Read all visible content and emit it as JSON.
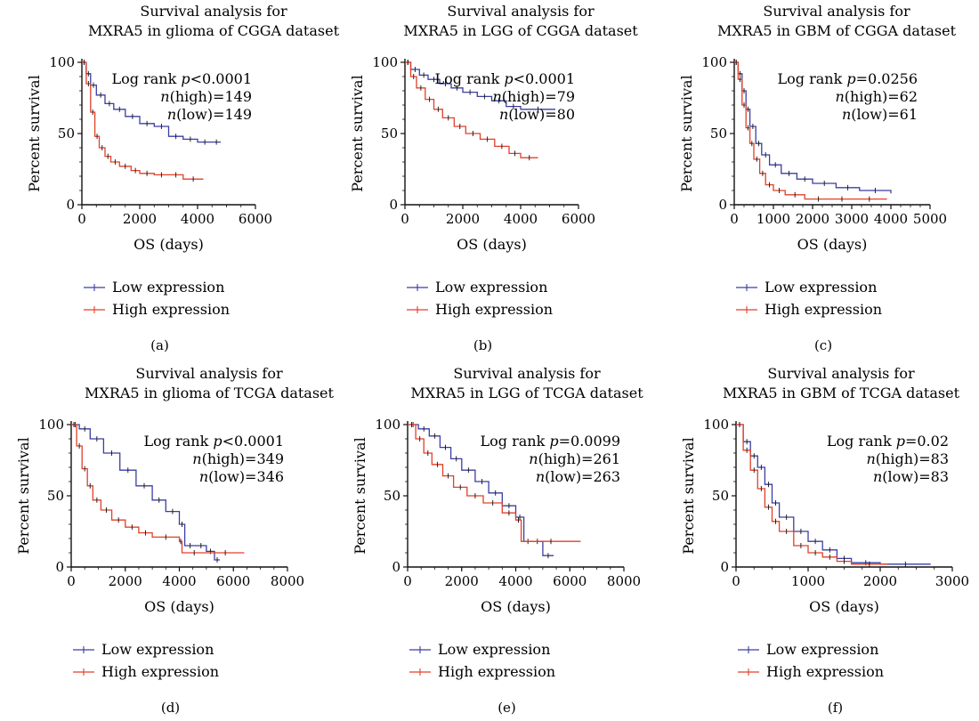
{
  "colors": {
    "low": "#3a3fa0",
    "high": "#e0402a",
    "axis": "#111111"
  },
  "legend": {
    "low": "Low expression",
    "high": "High expression"
  },
  "chart_data": [
    {
      "type": "line",
      "panel": "(a)",
      "title": [
        "Survival analysis for",
        "MXRA5 in glioma of CGGA dataset"
      ],
      "xlabel": "OS (days)",
      "ylabel": "Percent survival",
      "xlim": [
        0,
        6000
      ],
      "ylim": [
        0,
        100
      ],
      "xticks": [
        0,
        2000,
        4000,
        6000
      ],
      "yticks": [
        0,
        50,
        100
      ],
      "annotation": {
        "logrank": "Log rank ",
        "p": "p<0.0001",
        "n_high": "=149",
        "n_low": "=149"
      },
      "series": [
        {
          "name": "Low expression",
          "key": "low",
          "x": [
            0,
            150,
            300,
            500,
            800,
            1100,
            1500,
            2000,
            2500,
            3000,
            3500,
            4000,
            4500,
            4800
          ],
          "y": [
            100,
            92,
            84,
            77,
            71,
            67,
            62,
            57,
            55,
            48,
            46,
            44,
            44,
            44
          ]
        },
        {
          "name": "High expression",
          "key": "high",
          "x": [
            0,
            150,
            300,
            450,
            600,
            800,
            1000,
            1300,
            1700,
            2000,
            2500,
            3000,
            3500,
            4200
          ],
          "y": [
            100,
            85,
            65,
            48,
            40,
            34,
            30,
            27,
            24,
            22,
            21,
            21,
            18,
            18
          ]
        }
      ]
    },
    {
      "type": "line",
      "panel": "(b)",
      "title": [
        "Survival analysis for",
        "MXRA5 in LGG of CGGA dataset"
      ],
      "xlabel": "OS (days)",
      "ylabel": "Percent survival",
      "xlim": [
        0,
        6000
      ],
      "ylim": [
        0,
        100
      ],
      "xticks": [
        0,
        2000,
        4000,
        6000
      ],
      "yticks": [
        0,
        50,
        100
      ],
      "annotation": {
        "logrank": "Log rank ",
        "p": "p<0.0001",
        "n_high": "=79",
        "n_low": "=80"
      },
      "series": [
        {
          "name": "Low expression",
          "key": "low",
          "x": [
            0,
            200,
            500,
            800,
            1200,
            1600,
            2000,
            2500,
            3000,
            3500,
            4000,
            5200
          ],
          "y": [
            100,
            95,
            91,
            88,
            85,
            82,
            79,
            76,
            73,
            69,
            67,
            67
          ]
        },
        {
          "name": "High expression",
          "key": "high",
          "x": [
            0,
            200,
            400,
            700,
            1000,
            1300,
            1700,
            2100,
            2600,
            3100,
            3600,
            4000,
            4600
          ],
          "y": [
            100,
            90,
            82,
            74,
            67,
            61,
            55,
            50,
            46,
            41,
            36,
            33,
            33
          ]
        }
      ]
    },
    {
      "type": "line",
      "panel": "(c)",
      "title": [
        "Survival analysis for",
        "MXRA5 in GBM of CGGA dataset"
      ],
      "xlabel": "OS (days)",
      "ylabel": "Percent survival",
      "xlim": [
        0,
        5000
      ],
      "ylim": [
        0,
        100
      ],
      "xticks": [
        0,
        1000,
        2000,
        3000,
        4000,
        5000
      ],
      "yticks": [
        0,
        50,
        100
      ],
      "annotation": {
        "logrank": "Log rank ",
        "p": "p=0.0256",
        "n_high": "=62",
        "n_low": "=61"
      },
      "series": [
        {
          "name": "Low expression",
          "key": "low",
          "x": [
            0,
            100,
            200,
            300,
            400,
            550,
            700,
            900,
            1200,
            1600,
            2000,
            2600,
            3200,
            4000
          ],
          "y": [
            100,
            92,
            80,
            67,
            55,
            43,
            35,
            28,
            22,
            18,
            15,
            12,
            10,
            8
          ]
        },
        {
          "name": "High expression",
          "key": "high",
          "x": [
            0,
            100,
            200,
            300,
            400,
            500,
            650,
            800,
            1000,
            1300,
            1800,
            2500,
            3000,
            3900
          ],
          "y": [
            100,
            88,
            70,
            54,
            43,
            32,
            22,
            14,
            10,
            7,
            4,
            4,
            4,
            4
          ]
        }
      ]
    },
    {
      "type": "line",
      "panel": "(d)",
      "title": [
        "Survival analysis for",
        "MXRA5 in glioma of TCGA dataset"
      ],
      "xlabel": "OS (days)",
      "ylabel": "Percent survival",
      "xlim": [
        0,
        8000
      ],
      "ylim": [
        0,
        100
      ],
      "xticks": [
        0,
        2000,
        4000,
        6000,
        8000
      ],
      "yticks": [
        0,
        50,
        100
      ],
      "annotation": {
        "logrank": "Log rank ",
        "p": "p<0.0001",
        "n_high": "=349",
        "n_low": "=346"
      },
      "series": [
        {
          "name": "Low expression",
          "key": "low",
          "x": [
            0,
            300,
            700,
            1200,
            1800,
            2400,
            3000,
            3500,
            4000,
            4200,
            4600,
            5000,
            5300,
            5500
          ],
          "y": [
            100,
            97,
            90,
            80,
            68,
            57,
            47,
            39,
            30,
            15,
            15,
            11,
            5,
            5
          ]
        },
        {
          "name": "High expression",
          "key": "high",
          "x": [
            0,
            200,
            400,
            600,
            800,
            1100,
            1500,
            2000,
            2500,
            3000,
            4000,
            4100,
            5000,
            6400
          ],
          "y": [
            100,
            85,
            69,
            57,
            47,
            40,
            33,
            28,
            24,
            21,
            18,
            10,
            10,
            10
          ]
        }
      ]
    },
    {
      "type": "line",
      "panel": "(e)",
      "title": [
        "Survival analysis for",
        "MXRA5 in LGG of TCGA dataset"
      ],
      "xlabel": "OS (days)",
      "ylabel": "Percent survival",
      "xlim": [
        0,
        8000
      ],
      "ylim": [
        0,
        100
      ],
      "xticks": [
        0,
        2000,
        4000,
        6000,
        8000
      ],
      "yticks": [
        0,
        50,
        100
      ],
      "annotation": {
        "logrank": "Log rank ",
        "p": "p=0.0099",
        "n_high": "=261",
        "n_low": "=263"
      },
      "series": [
        {
          "name": "Low expression",
          "key": "low",
          "x": [
            0,
            400,
            800,
            1200,
            1600,
            2000,
            2500,
            3000,
            3500,
            4000,
            4300,
            4600,
            5000,
            5400
          ],
          "y": [
            100,
            97,
            92,
            84,
            76,
            68,
            60,
            52,
            43,
            35,
            18,
            18,
            8,
            8
          ]
        },
        {
          "name": "High expression",
          "key": "high",
          "x": [
            0,
            300,
            600,
            900,
            1300,
            1700,
            2200,
            2800,
            3500,
            4000,
            4200,
            6400
          ],
          "y": [
            100,
            90,
            80,
            72,
            64,
            56,
            50,
            45,
            38,
            33,
            18,
            18
          ]
        }
      ]
    },
    {
      "type": "line",
      "panel": "(f)",
      "title": [
        "Survival analysis for",
        "MXRA5 in GBM of TCGA dataset"
      ],
      "xlabel": "OS (days)",
      "ylabel": "Percent survival",
      "xlim": [
        0,
        3000
      ],
      "ylim": [
        0,
        100
      ],
      "xticks": [
        0,
        1000,
        2000,
        3000
      ],
      "yticks": [
        0,
        50,
        100
      ],
      "annotation": {
        "logrank": "Log rank ",
        "p": "p=0.02",
        "n_high": "=83",
        "n_low": "=83"
      },
      "series": [
        {
          "name": "Low expression",
          "key": "low",
          "x": [
            0,
            100,
            200,
            300,
            400,
            500,
            600,
            800,
            1000,
            1200,
            1400,
            1600,
            2000,
            2700
          ],
          "y": [
            100,
            88,
            78,
            70,
            58,
            45,
            35,
            25,
            18,
            12,
            6,
            3,
            2,
            2
          ]
        },
        {
          "name": "High expression",
          "key": "high",
          "x": [
            0,
            100,
            200,
            300,
            400,
            500,
            600,
            800,
            1000,
            1200,
            1400,
            1600,
            2100
          ],
          "y": [
            100,
            82,
            68,
            55,
            42,
            32,
            25,
            15,
            10,
            7,
            4,
            2,
            2
          ]
        }
      ]
    }
  ]
}
